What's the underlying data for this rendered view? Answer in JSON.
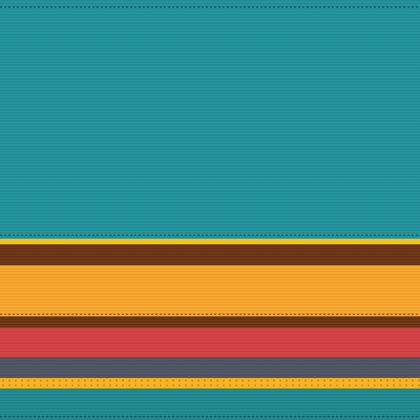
{
  "pattern": {
    "stripes": [
      {
        "name": "teal-top",
        "color": "#1f939c"
      },
      {
        "name": "yellow-thin",
        "color": "#f7c21a"
      },
      {
        "name": "brown-wide",
        "color": "#6b3414"
      },
      {
        "name": "orange-wide",
        "color": "#f9a62a"
      },
      {
        "name": "brown-narrow",
        "color": "#6b3414"
      },
      {
        "name": "red",
        "color": "#d53f44"
      },
      {
        "name": "slate-gray",
        "color": "#4d5463"
      },
      {
        "name": "yellow-dotted",
        "color": "#f8b41e"
      },
      {
        "name": "teal-bottom",
        "color": "#1d8a8f"
      }
    ],
    "stitch_color": "#0f4a52"
  }
}
